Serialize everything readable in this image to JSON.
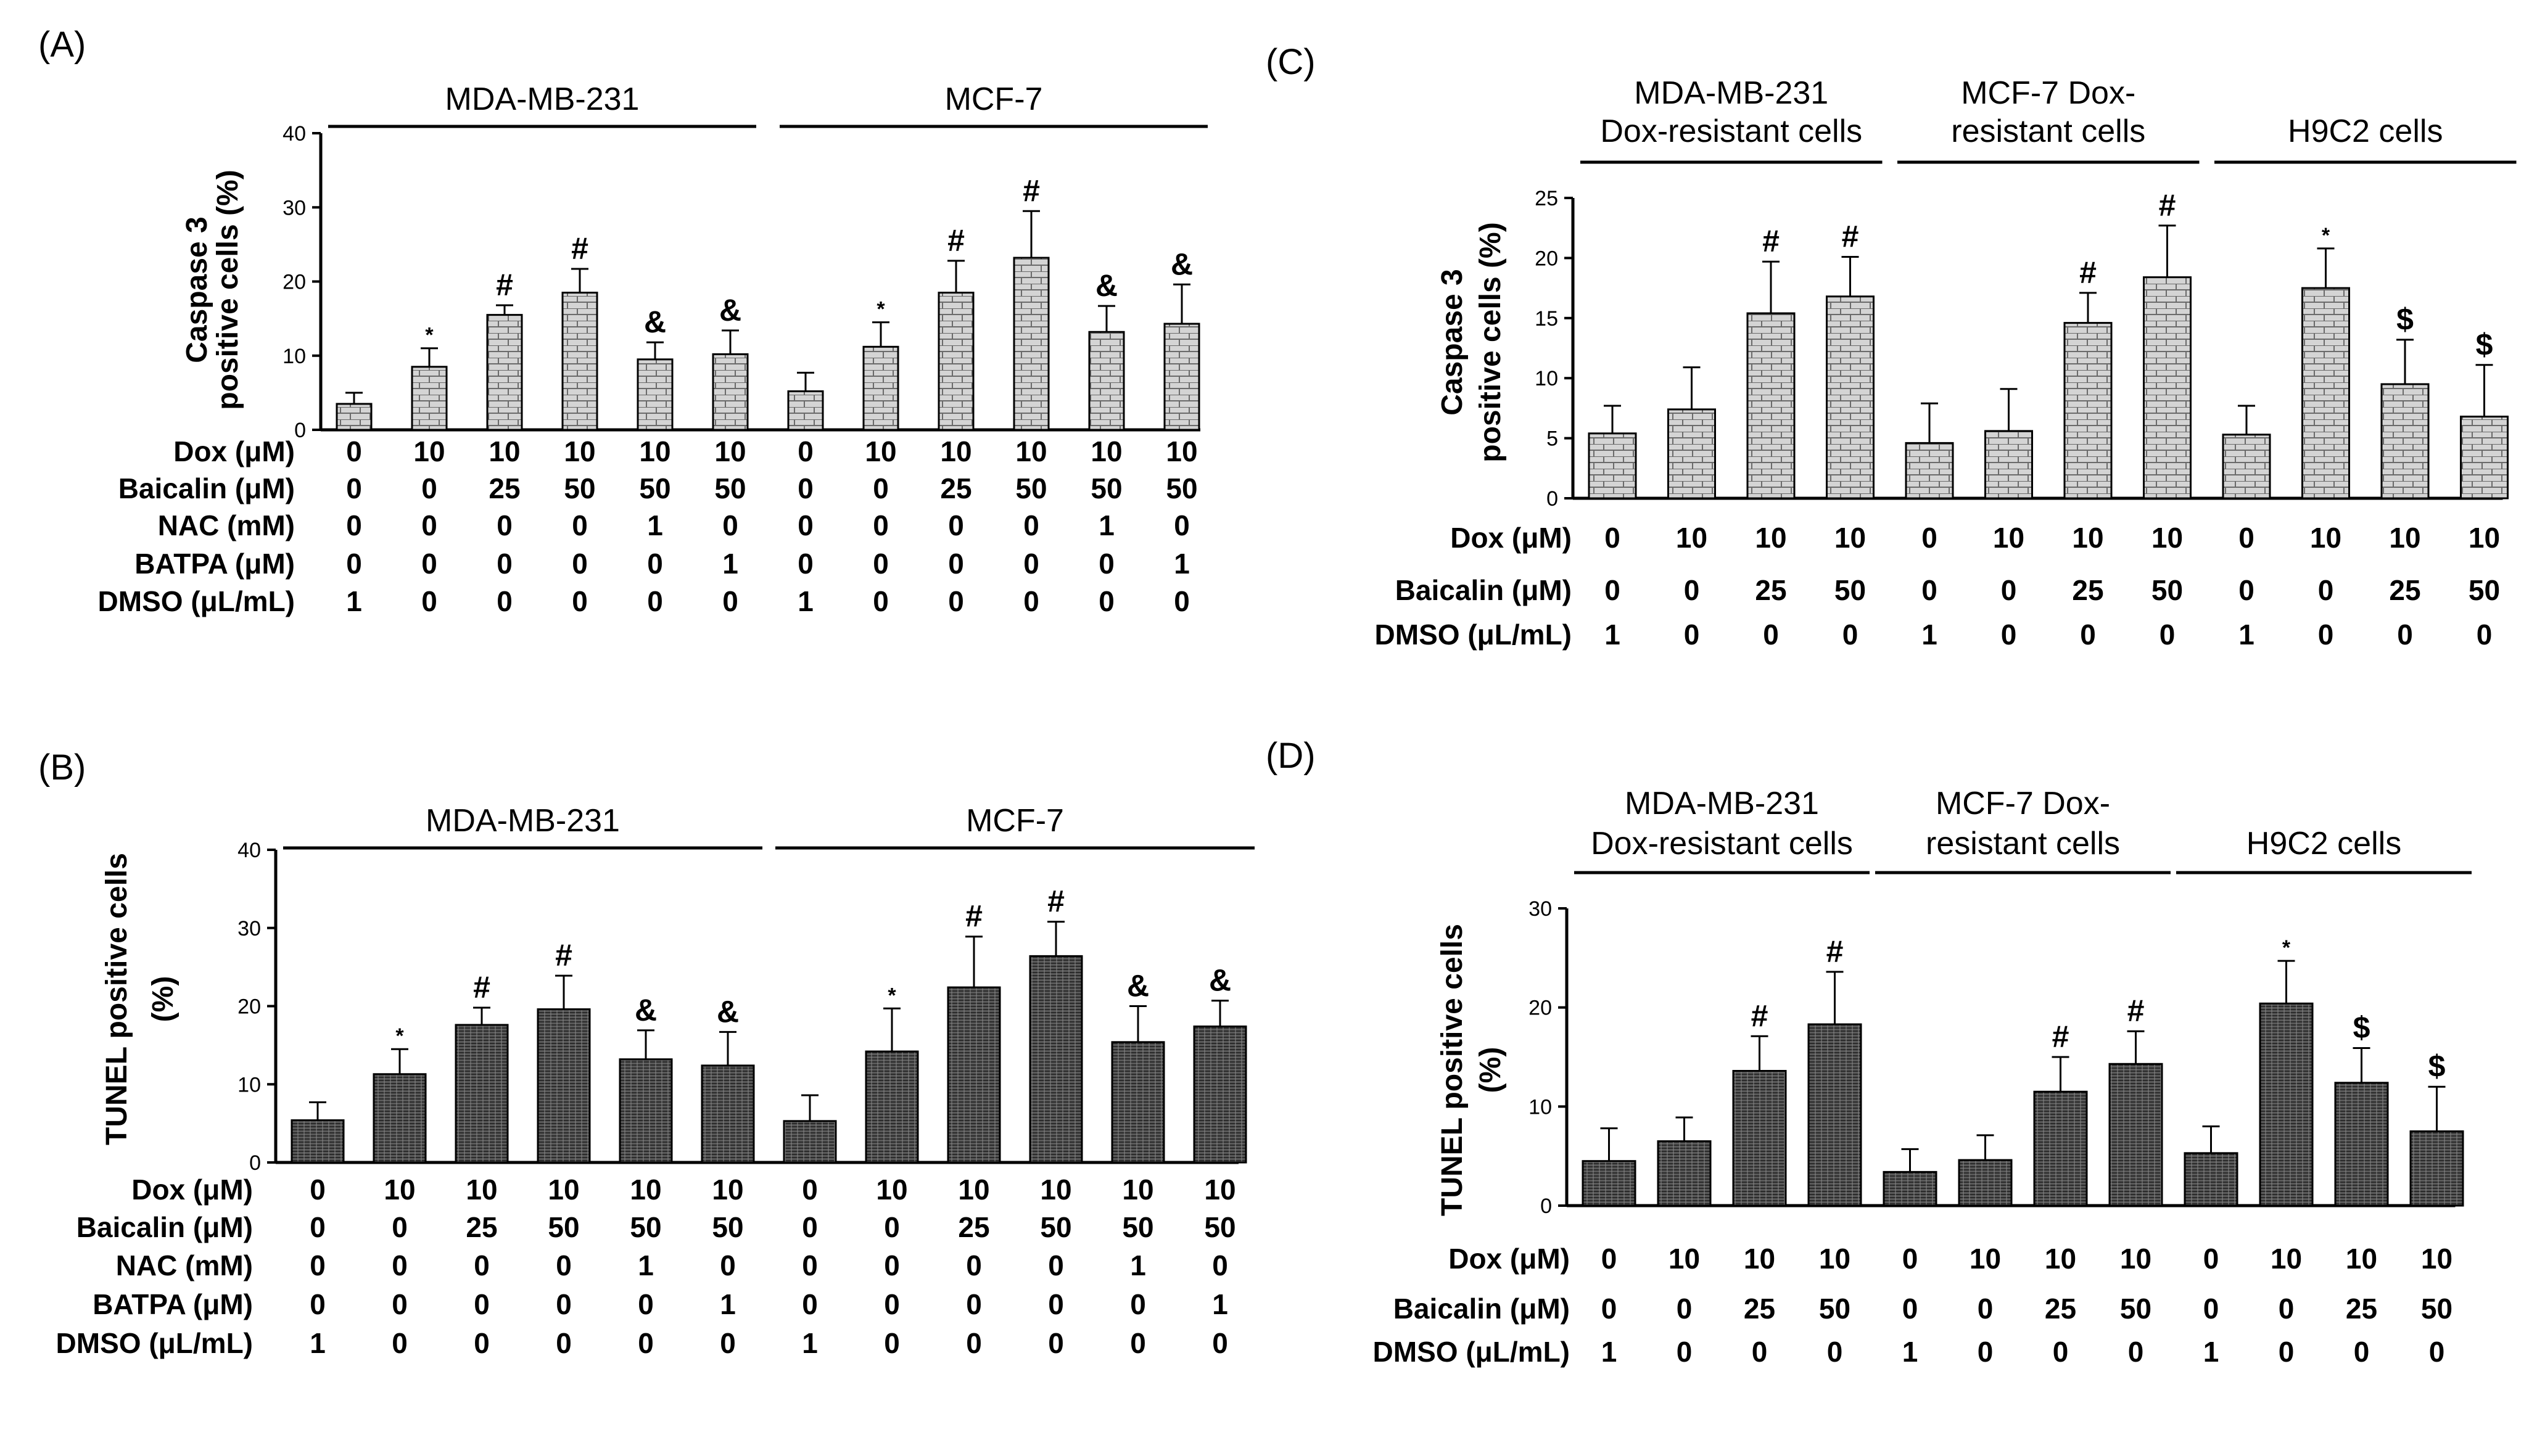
{
  "figure": {
    "colors": {
      "bar_fill": "#d4d4d4",
      "bar_fill_dark": "#5a5a5a",
      "stroke": "#000000",
      "text": "#000000"
    }
  },
  "chart_data": [
    {
      "panel_label": "(A)",
      "type": "bar",
      "pattern": "brick",
      "ylabel": [
        "Caspase 3",
        "positive cells (%)"
      ],
      "ylim": [
        0,
        40
      ],
      "yticks": [
        "0",
        "10",
        "20",
        "30",
        "40"
      ],
      "groups": [
        {
          "label": [
            "MDA-MB-231"
          ],
          "first_bar": 0,
          "last_bar": 5
        },
        {
          "label": [
            "MCF-7"
          ],
          "first_bar": 6,
          "last_bar": 11
        }
      ],
      "values": [
        3.5,
        8.5,
        15.5,
        18.5,
        9.5,
        10.2,
        5.2,
        11.2,
        18.5,
        23.2,
        13.2,
        14.3
      ],
      "errors": [
        1.5,
        2.5,
        1.3,
        3.2,
        2.3,
        3.2,
        2.5,
        3.3,
        4.3,
        6.3,
        3.5,
        5.3
      ],
      "annotations": [
        "",
        "*",
        "#",
        "#",
        "&",
        "&",
        "",
        "*",
        "#",
        "#",
        "&",
        "&"
      ],
      "conditions": [
        {
          "name": "Dox (μM)",
          "values": [
            "0",
            "10",
            "10",
            "10",
            "10",
            "10",
            "0",
            "10",
            "10",
            "10",
            "10",
            "10"
          ]
        },
        {
          "name": "Baicalin (μM)",
          "values": [
            "0",
            "0",
            "25",
            "50",
            "50",
            "50",
            "0",
            "0",
            "25",
            "50",
            "50",
            "50"
          ]
        },
        {
          "name": "NAC (mM)",
          "values": [
            "0",
            "0",
            "0",
            "0",
            "1",
            "0",
            "0",
            "0",
            "0",
            "0",
            "1",
            "0"
          ]
        },
        {
          "name": "BATPA (μM)",
          "values": [
            "0",
            "0",
            "0",
            "0",
            "0",
            "1",
            "0",
            "0",
            "0",
            "0",
            "0",
            "1"
          ]
        },
        {
          "name": "DMSO (μL/mL)",
          "values": [
            "1",
            "0",
            "0",
            "0",
            "0",
            "0",
            "1",
            "0",
            "0",
            "0",
            "0",
            "0"
          ]
        }
      ]
    },
    {
      "panel_label": "(B)",
      "type": "bar",
      "pattern": "dark",
      "ylabel": [
        "TUNEL positive cells",
        "(%)"
      ],
      "ylim": [
        0,
        40
      ],
      "yticks": [
        "0",
        "10",
        "20",
        "30",
        "40"
      ],
      "groups": [
        {
          "label": [
            "MDA-MB-231"
          ],
          "first_bar": 0,
          "last_bar": 5
        },
        {
          "label": [
            "MCF-7"
          ],
          "first_bar": 6,
          "last_bar": 11
        }
      ],
      "values": [
        5.4,
        11.3,
        17.6,
        19.6,
        13.2,
        12.4,
        5.3,
        14.2,
        22.4,
        26.4,
        15.4,
        17.4
      ],
      "errors": [
        2.3,
        3.2,
        2.2,
        4.3,
        3.7,
        4.3,
        3.3,
        5.5,
        6.5,
        4.4,
        4.6,
        3.3
      ],
      "annotations": [
        "",
        "*",
        "#",
        "#",
        "&",
        "&",
        "",
        "*",
        "#",
        "#",
        "&",
        "&"
      ],
      "conditions": [
        {
          "name": "Dox (μM)",
          "values": [
            "0",
            "10",
            "10",
            "10",
            "10",
            "10",
            "0",
            "10",
            "10",
            "10",
            "10",
            "10"
          ]
        },
        {
          "name": "Baicalin (μM)",
          "values": [
            "0",
            "0",
            "25",
            "50",
            "50",
            "50",
            "0",
            "0",
            "25",
            "50",
            "50",
            "50"
          ]
        },
        {
          "name": "NAC (mM)",
          "values": [
            "0",
            "0",
            "0",
            "0",
            "1",
            "0",
            "0",
            "0",
            "0",
            "0",
            "1",
            "0"
          ]
        },
        {
          "name": "BATPA (μM)",
          "values": [
            "0",
            "0",
            "0",
            "0",
            "0",
            "1",
            "0",
            "0",
            "0",
            "0",
            "0",
            "1"
          ]
        },
        {
          "name": "DMSO (μL/mL)",
          "values": [
            "1",
            "0",
            "0",
            "0",
            "0",
            "0",
            "1",
            "0",
            "0",
            "0",
            "0",
            "0"
          ]
        }
      ]
    },
    {
      "panel_label": "(C)",
      "type": "bar",
      "pattern": "brick",
      "ylabel": [
        "Caspase 3",
        "positive cells (%)"
      ],
      "ylim": [
        0,
        25
      ],
      "yticks": [
        "0",
        "5",
        "10",
        "15",
        "20",
        "25"
      ],
      "groups": [
        {
          "label": [
            "MDA-MB-231",
            "Dox-resistant cells"
          ],
          "first_bar": 0,
          "last_bar": 3
        },
        {
          "label": [
            "MCF-7 Dox-",
            "resistant cells"
          ],
          "first_bar": 4,
          "last_bar": 7
        },
        {
          "label": [
            "H9C2 cells"
          ],
          "first_bar": 8,
          "last_bar": 11
        }
      ],
      "values": [
        5.4,
        7.4,
        15.4,
        16.8,
        4.6,
        5.6,
        14.6,
        18.4,
        5.3,
        17.5,
        9.5,
        6.8
      ],
      "errors": [
        2.3,
        3.5,
        4.3,
        3.3,
        3.3,
        3.5,
        2.5,
        4.3,
        2.4,
        3.3,
        3.7,
        4.3
      ],
      "annotations": [
        "",
        "",
        "#",
        "#",
        "",
        "",
        "#",
        "#",
        "",
        "*",
        "$",
        "$"
      ],
      "conditions": [
        {
          "name": "Dox (μM)",
          "values": [
            "0",
            "10",
            "10",
            "10",
            "0",
            "10",
            "10",
            "10",
            "0",
            "10",
            "10",
            "10"
          ]
        },
        {
          "name": "Baicalin (μM)",
          "values": [
            "0",
            "0",
            "25",
            "50",
            "0",
            "0",
            "25",
            "50",
            "0",
            "0",
            "25",
            "50"
          ]
        },
        {
          "name": "DMSO (μL/mL)",
          "values": [
            "1",
            "0",
            "0",
            "0",
            "1",
            "0",
            "0",
            "0",
            "1",
            "0",
            "0",
            "0"
          ]
        }
      ]
    },
    {
      "panel_label": "(D)",
      "type": "bar",
      "pattern": "dark",
      "ylabel": [
        "TUNEL positive cells",
        "(%)"
      ],
      "ylim": [
        0,
        30
      ],
      "yticks": [
        "0",
        "10",
        "20",
        "30"
      ],
      "groups": [
        {
          "label": [
            "MDA-MB-231",
            "Dox-resistant cells"
          ],
          "first_bar": 0,
          "last_bar": 3
        },
        {
          "label": [
            "MCF-7 Dox-",
            "resistant cells"
          ],
          "first_bar": 4,
          "last_bar": 7
        },
        {
          "label": [
            "H9C2 cells"
          ],
          "first_bar": 8,
          "last_bar": 11
        }
      ],
      "values": [
        4.5,
        6.5,
        13.6,
        18.3,
        3.4,
        4.6,
        11.5,
        14.3,
        5.3,
        20.4,
        12.4,
        7.5
      ],
      "errors": [
        3.3,
        2.4,
        3.5,
        5.3,
        2.3,
        2.5,
        3.5,
        3.3,
        2.7,
        4.3,
        3.5,
        4.5
      ],
      "annotations": [
        "",
        "",
        "#",
        "#",
        "",
        "",
        "#",
        "#",
        "",
        "*",
        "$",
        "$"
      ],
      "conditions": [
        {
          "name": "Dox (μM)",
          "values": [
            "0",
            "10",
            "10",
            "10",
            "0",
            "10",
            "10",
            "10",
            "0",
            "10",
            "10",
            "10"
          ]
        },
        {
          "name": "Baicalin (μM)",
          "values": [
            "0",
            "0",
            "25",
            "50",
            "0",
            "0",
            "25",
            "50",
            "0",
            "0",
            "25",
            "50"
          ]
        },
        {
          "name": "DMSO (μL/mL)",
          "values": [
            "1",
            "0",
            "0",
            "0",
            "1",
            "0",
            "0",
            "0",
            "1",
            "0",
            "0",
            "0"
          ]
        }
      ]
    }
  ]
}
